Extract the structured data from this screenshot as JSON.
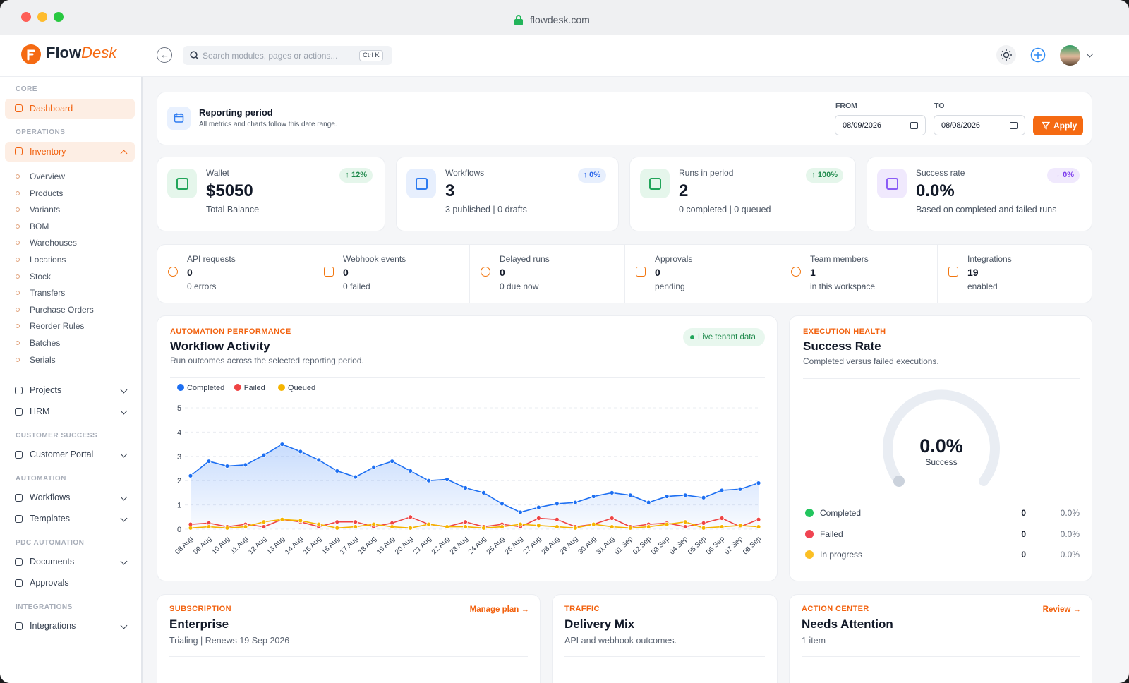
{
  "browser": {
    "url": "flowdesk.com"
  },
  "brand": {
    "first": "Flow",
    "second": "Desk"
  },
  "search": {
    "placeholder": "Search modules, pages or actions...",
    "shortcut": "Ctrl K"
  },
  "sidebar": [
    {
      "section": "CORE",
      "items": [
        {
          "label": "Dashboard",
          "active": true
        }
      ]
    },
    {
      "section": "OPERATIONS",
      "items": [
        {
          "label": "Inventory",
          "expandable": true,
          "open": true,
          "children": [
            "Overview",
            "Products",
            "Variants",
            "BOM",
            "Warehouses",
            "Locations",
            "Stock",
            "Transfers",
            "Purchase Orders",
            "Reorder Rules",
            "Batches",
            "Serials"
          ]
        },
        {
          "label": "Projects",
          "expandable": true
        },
        {
          "label": "HRM",
          "expandable": true
        }
      ]
    },
    {
      "section": "CUSTOMER SUCCESS",
      "items": [
        {
          "label": "Customer Portal",
          "expandable": true
        }
      ]
    },
    {
      "section": "AUTOMATION",
      "items": [
        {
          "label": "Workflows",
          "expandable": true
        },
        {
          "label": "Templates",
          "expandable": true
        }
      ]
    },
    {
      "section": "PDC AUTOMATION",
      "items": [
        {
          "label": "Documents",
          "expandable": true
        },
        {
          "label": "Approvals"
        }
      ]
    },
    {
      "section": "INTEGRATIONS",
      "items": [
        {
          "label": "Integrations",
          "expandable": true
        }
      ]
    }
  ],
  "reporting": {
    "title": "Reporting period",
    "subtitle": "All metrics and charts follow this date range.",
    "from_label": "FROM",
    "from": "08/09/2026",
    "to_label": "TO",
    "to": "08/08/2026",
    "apply": "Apply"
  },
  "stats": [
    {
      "label": "Wallet",
      "value": "$5050",
      "sub": "Total Balance",
      "badge": "↑ 12%",
      "tone": "green"
    },
    {
      "label": "Workflows",
      "value": 3,
      "sub": "3 published | 0 drafts",
      "badge": "↑ 0%",
      "tone": "blue"
    },
    {
      "label": "Runs in period",
      "value": 2,
      "sub": "0 completed | 0 queued",
      "badge": "↑ 100%",
      "tone": "green"
    },
    {
      "label": "Success rate",
      "value": "0.0%",
      "sub": "Based on completed and failed runs",
      "badge": "→ 0%",
      "tone": "purple"
    }
  ],
  "metrics": [
    {
      "label": "API requests",
      "value": 0,
      "sub": "0 errors"
    },
    {
      "label": "Webhook events",
      "value": 0,
      "sub": "0 failed"
    },
    {
      "label": "Delayed runs",
      "value": 0,
      "sub": "0 due now"
    },
    {
      "label": "Approvals",
      "value": 0,
      "sub": "pending"
    },
    {
      "label": "Team members",
      "value": 1,
      "sub": "in this workspace"
    },
    {
      "label": "Integrations",
      "value": 19,
      "sub": "enabled"
    }
  ],
  "activity": {
    "eyebrow": "AUTOMATION PERFORMANCE",
    "title": "Workflow Activity",
    "subtitle": "Run outcomes across the selected reporting period.",
    "badge": "Live tenant data"
  },
  "chart_data": {
    "type": "line",
    "categories": [
      "08 Aug",
      "09 Aug",
      "10 Aug",
      "11 Aug",
      "12 Aug",
      "13 Aug",
      "14 Aug",
      "15 Aug",
      "16 Aug",
      "17 Aug",
      "18 Aug",
      "19 Aug",
      "20 Aug",
      "21 Aug",
      "22 Aug",
      "23 Aug",
      "24 Aug",
      "25 Aug",
      "26 Aug",
      "27 Aug",
      "28 Aug",
      "29 Aug",
      "30 Aug",
      "31 Aug",
      "01 Sep",
      "02 Sep",
      "03 Sep",
      "04 Sep",
      "05 Sep",
      "06 Sep",
      "07 Sep",
      "08 Sep"
    ],
    "series": [
      {
        "name": "Completed",
        "color": "#1d6ff2",
        "area": true,
        "values": [
          2.2,
          2.8,
          2.6,
          2.65,
          3.05,
          3.5,
          3.2,
          2.85,
          2.4,
          2.15,
          2.55,
          2.8,
          2.4,
          2.0,
          2.05,
          1.7,
          1.5,
          1.05,
          0.7,
          0.9,
          1.05,
          1.1,
          1.35,
          1.5,
          1.4,
          1.1,
          1.35,
          1.4,
          1.3,
          1.6,
          1.65,
          1.9
        ]
      },
      {
        "name": "Failed",
        "color": "#ef4444",
        "values": [
          0.2,
          0.25,
          0.1,
          0.2,
          0.1,
          0.4,
          0.3,
          0.1,
          0.3,
          0.3,
          0.1,
          0.25,
          0.5,
          0.2,
          0.1,
          0.3,
          0.1,
          0.2,
          0.1,
          0.45,
          0.4,
          0.1,
          0.2,
          0.45,
          0.1,
          0.2,
          0.25,
          0.1,
          0.25,
          0.45,
          0.1,
          0.4
        ]
      },
      {
        "name": "Queued",
        "color": "#f5b400",
        "values": [
          0.05,
          0.1,
          0.05,
          0.1,
          0.3,
          0.4,
          0.35,
          0.2,
          0.05,
          0.1,
          0.2,
          0.1,
          0.05,
          0.2,
          0.1,
          0.1,
          0.05,
          0.1,
          0.2,
          0.15,
          0.1,
          0.05,
          0.2,
          0.1,
          0.05,
          0.1,
          0.2,
          0.3,
          0.05,
          0.1,
          0.15,
          0.1
        ]
      }
    ],
    "ylim": [
      0,
      5
    ],
    "yticks": [
      0,
      1,
      2,
      3,
      4,
      5
    ],
    "grid": true,
    "legend": "top-left"
  },
  "health": {
    "eyebrow": "EXECUTION HEALTH",
    "title": "Success Rate",
    "subtitle": "Completed versus failed executions.",
    "gauge_value": "0.0%",
    "gauge_label": "Success",
    "rows": [
      {
        "label": "Completed",
        "count": 0,
        "percent": "0.0%",
        "color": "#22c55e"
      },
      {
        "label": "Failed",
        "count": 0,
        "percent": "0.0%",
        "color": "#f04452"
      },
      {
        "label": "In progress",
        "count": 0,
        "percent": "0.0%",
        "color": "#fbbf24"
      }
    ]
  },
  "cards": [
    {
      "eyebrow": "SUBSCRIPTION",
      "title": "Enterprise",
      "subtitle": "Trialing | Renews 19 Sep 2026",
      "link": "Manage plan →"
    },
    {
      "eyebrow": "TRAFFIC",
      "title": "Delivery Mix",
      "subtitle": "API and webhook outcomes."
    },
    {
      "eyebrow": "ACTION CENTER",
      "title": "Needs Attention",
      "subtitle": "1 item",
      "link": "Review →"
    }
  ]
}
